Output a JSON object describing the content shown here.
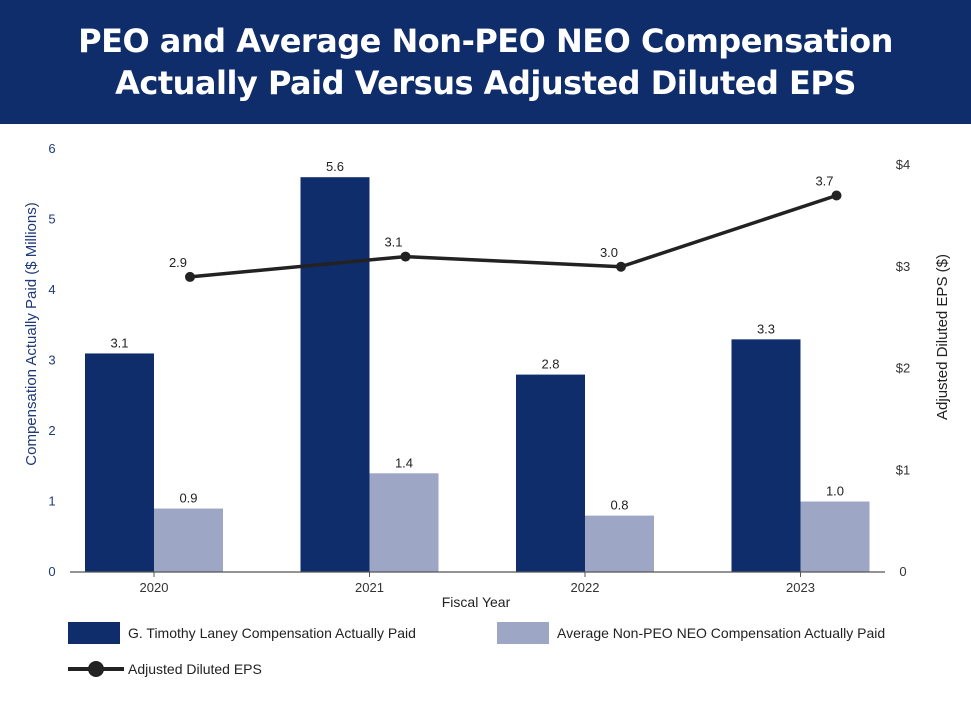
{
  "title": {
    "line1": "PEO and Average Non-PEO NEO Compensation",
    "line2": "Actually Paid Versus Adjusted Diluted EPS"
  },
  "chart_data": {
    "type": "bar",
    "categories": [
      "2020",
      "2021",
      "2022",
      "2023"
    ],
    "series": [
      {
        "name": "G. Timothy Laney Compensation Actually Paid",
        "kind": "bar",
        "axis": "left",
        "color": "#0f2d6b",
        "values": [
          3.1,
          5.6,
          2.8,
          3.3
        ],
        "labels": [
          "3.1",
          "5.6",
          "2.8",
          "3.3"
        ]
      },
      {
        "name": "Average Non-PEO NEO Compensation Actually Paid",
        "kind": "bar",
        "axis": "left",
        "color": "#9ea6c6",
        "values": [
          0.9,
          1.4,
          0.8,
          1.0
        ],
        "labels": [
          "0.9",
          "1.4",
          "0.8",
          "1.0"
        ]
      },
      {
        "name": "Adjusted Diluted EPS",
        "kind": "line",
        "axis": "right",
        "color": "#222222",
        "values": [
          2.9,
          3.1,
          3.0,
          3.7
        ],
        "labels": [
          "2.9",
          "3.1",
          "3.0",
          "3.7"
        ]
      }
    ],
    "xlabel": "Fiscal Year",
    "ylabel": "Compensation Actually Paid ($ Millions)",
    "ylabel_right": "Adjusted Diluted EPS ($)",
    "ylim": [
      0,
      6
    ],
    "yticks": [
      "0",
      "1",
      "2",
      "3",
      "4",
      "5",
      "6"
    ],
    "ylim_right": [
      0,
      4
    ],
    "yticks_right": [
      "0",
      "$1",
      "$2",
      "$3",
      "$4"
    ],
    "legend_position": "bottom"
  }
}
